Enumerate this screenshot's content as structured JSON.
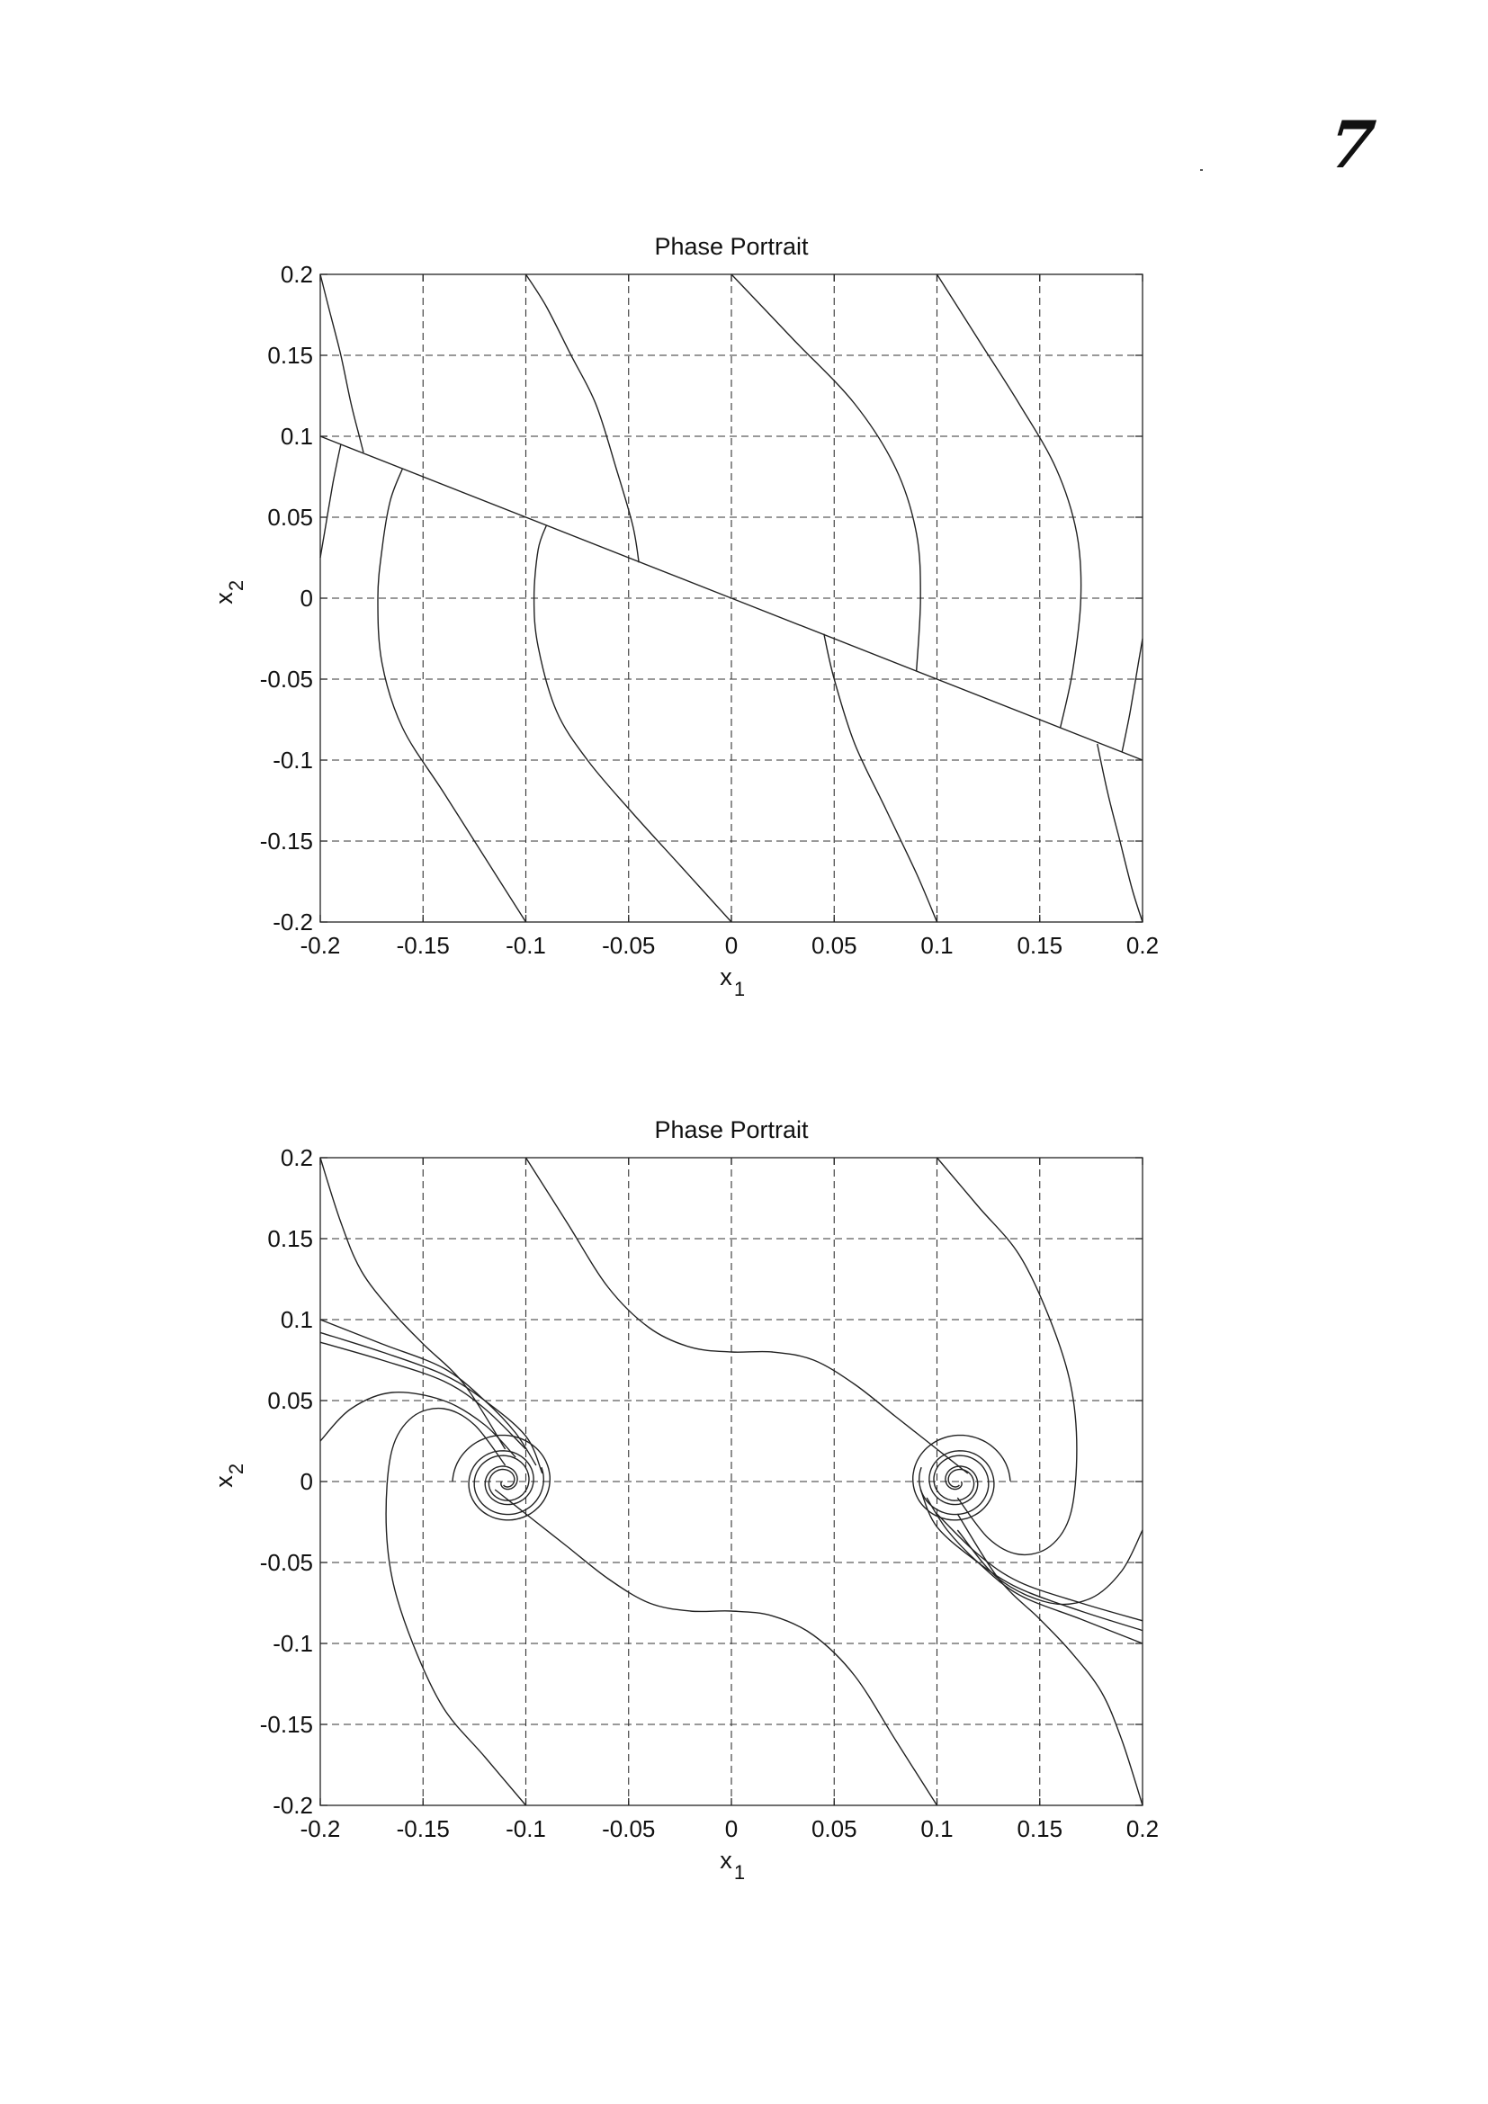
{
  "page": {
    "page_number": "7"
  },
  "chart_data": [
    {
      "type": "line",
      "title": "Phase Portrait",
      "xlabel_main": "x",
      "xlabel_sub": "1",
      "ylabel_main": "x",
      "ylabel_sub": "2",
      "xlim": [
        -0.2,
        0.2
      ],
      "ylim": [
        -0.2,
        0.2
      ],
      "xticks": [
        -0.2,
        -0.15,
        -0.1,
        -0.05,
        0,
        0.05,
        0.1,
        0.15,
        0.2
      ],
      "yticks": [
        -0.2,
        -0.15,
        -0.1,
        -0.05,
        0,
        0.05,
        0.1,
        0.15,
        0.2
      ],
      "xtick_labels": [
        "-0.2",
        "-0.15",
        "-0.1",
        "-0.05",
        "0",
        "0.05",
        "0.1",
        "0.15",
        "0.2"
      ],
      "ytick_labels": [
        "-0.2",
        "-0.15",
        "-0.1",
        "-0.05",
        "0",
        "0.05",
        "0.1",
        "0.15",
        "0.2"
      ],
      "grid": true,
      "series": [
        {
          "x": [
            -0.2,
            0.2
          ],
          "y": [
            0.1,
            -0.1
          ]
        },
        {
          "x": [
            -0.2,
            -0.196,
            -0.19,
            -0.185,
            -0.181,
            -0.179
          ],
          "y": [
            0.2,
            0.18,
            0.15,
            0.12,
            0.1,
            0.09
          ]
        },
        {
          "x": [
            -0.2,
            -0.198,
            -0.196,
            -0.194,
            -0.192,
            -0.19
          ],
          "y": [
            0.025,
            0.04,
            0.055,
            0.07,
            0.083,
            0.095
          ]
        },
        {
          "x": [
            -0.16,
            -0.166,
            -0.17,
            -0.172,
            -0.17,
            -0.16,
            -0.14,
            -0.12,
            -0.1
          ],
          "y": [
            0.08,
            0.06,
            0.03,
            0,
            -0.04,
            -0.08,
            -0.12,
            -0.16,
            -0.2
          ]
        },
        {
          "x": [
            -0.1,
            -0.09,
            -0.078,
            -0.066,
            -0.056,
            -0.048,
            -0.045
          ],
          "y": [
            0.2,
            0.18,
            0.15,
            0.12,
            0.08,
            0.045,
            0.022
          ]
        },
        {
          "x": [
            -0.09,
            -0.094,
            -0.096,
            -0.094,
            -0.085,
            -0.07,
            -0.05,
            -0.025,
            0
          ],
          "y": [
            0.045,
            0.03,
            0,
            -0.03,
            -0.07,
            -0.1,
            -0.13,
            -0.165,
            -0.2
          ]
        },
        {
          "x": [
            0,
            0.03,
            0.06,
            0.08,
            0.09,
            0.092,
            0.09
          ],
          "y": [
            0.2,
            0.16,
            0.12,
            0.08,
            0.04,
            0,
            -0.045
          ]
        },
        {
          "x": [
            0.045,
            0.05,
            0.06,
            0.075,
            0.09,
            0.1
          ],
          "y": [
            -0.022,
            -0.05,
            -0.09,
            -0.13,
            -0.17,
            -0.2
          ]
        },
        {
          "x": [
            0.1,
            0.12,
            0.14,
            0.158,
            0.168,
            0.17,
            0.166,
            0.16
          ],
          "y": [
            0.2,
            0.16,
            0.12,
            0.08,
            0.04,
            0,
            -0.045,
            -0.08
          ]
        },
        {
          "x": [
            0.178,
            0.183,
            0.189,
            0.195,
            0.2
          ],
          "y": [
            -0.09,
            -0.12,
            -0.15,
            -0.18,
            -0.2
          ]
        },
        {
          "x": [
            0.19,
            0.192,
            0.194,
            0.196,
            0.198,
            0.2
          ],
          "y": [
            -0.095,
            -0.083,
            -0.07,
            -0.055,
            -0.04,
            -0.025
          ]
        }
      ]
    },
    {
      "type": "line",
      "title": "Phase Portrait",
      "xlabel_main": "x",
      "xlabel_sub": "1",
      "ylabel_main": "x",
      "ylabel_sub": "2",
      "xlim": [
        -0.2,
        0.2
      ],
      "ylim": [
        -0.2,
        0.2
      ],
      "xticks": [
        -0.2,
        -0.15,
        -0.1,
        -0.05,
        0,
        0.05,
        0.1,
        0.15,
        0.2
      ],
      "yticks": [
        -0.2,
        -0.15,
        -0.1,
        -0.05,
        0,
        0.05,
        0.1,
        0.15,
        0.2
      ],
      "xtick_labels": [
        "-0.2",
        "-0.15",
        "-0.1",
        "-0.05",
        "0",
        "0.05",
        "0.1",
        "0.15",
        "0.2"
      ],
      "ytick_labels": [
        "-0.2",
        "-0.15",
        "-0.1",
        "-0.05",
        "0",
        "0.05",
        "0.1",
        "0.15",
        "0.2"
      ],
      "grid": true,
      "equilibria": [
        [
          -0.11,
          0
        ],
        [
          0.11,
          0
        ]
      ],
      "series": [
        {
          "x": [
            -0.1,
            -0.08,
            -0.06,
            -0.04,
            -0.02,
            0,
            0.02,
            0.04,
            0.06,
            0.08,
            0.1,
            0.115
          ],
          "y": [
            0.2,
            0.16,
            0.12,
            0.095,
            0.083,
            0.08,
            0.08,
            0.075,
            0.06,
            0.04,
            0.02,
            0.005
          ]
        },
        {
          "x": [
            0.1,
            0.08,
            0.06,
            0.04,
            0.02,
            0,
            -0.02,
            -0.04,
            -0.06,
            -0.08,
            -0.1,
            -0.115
          ],
          "y": [
            -0.2,
            -0.16,
            -0.12,
            -0.095,
            -0.083,
            -0.08,
            -0.08,
            -0.075,
            -0.06,
            -0.04,
            -0.02,
            -0.005
          ]
        },
        {
          "x": [
            -0.2,
            -0.19,
            -0.18,
            -0.165,
            -0.15,
            -0.13,
            -0.11
          ],
          "y": [
            0.2,
            0.16,
            0.13,
            0.105,
            0.085,
            0.06,
            0.02
          ]
        },
        {
          "x": [
            0.2,
            0.19,
            0.18,
            0.165,
            0.15,
            0.13,
            0.11
          ],
          "y": [
            -0.2,
            -0.16,
            -0.13,
            -0.105,
            -0.085,
            -0.06,
            -0.02
          ]
        },
        {
          "x": [
            0.1,
            0.12,
            0.14,
            0.155,
            0.165,
            0.168,
            0.165,
            0.155,
            0.14,
            0.125,
            0.11
          ],
          "y": [
            0.2,
            0.17,
            0.14,
            0.1,
            0.06,
            0.02,
            -0.02,
            -0.04,
            -0.045,
            -0.035,
            -0.01
          ]
        },
        {
          "x": [
            -0.1,
            -0.12,
            -0.14,
            -0.155,
            -0.165,
            -0.168,
            -0.165,
            -0.155,
            -0.14,
            -0.125,
            -0.11
          ],
          "y": [
            -0.2,
            -0.17,
            -0.14,
            -0.1,
            -0.06,
            -0.02,
            0.02,
            0.04,
            0.045,
            0.035,
            0.01
          ]
        },
        {
          "x": [
            -0.2,
            -0.17,
            -0.14,
            -0.12,
            -0.105,
            -0.095
          ],
          "y": [
            0.1,
            0.085,
            0.07,
            0.05,
            0.03,
            0.01
          ]
        },
        {
          "x": [
            -0.2,
            -0.17,
            -0.14,
            -0.12,
            -0.1,
            -0.092
          ],
          "y": [
            0.092,
            0.08,
            0.066,
            0.05,
            0.028,
            0.005
          ]
        },
        {
          "x": [
            -0.2,
            -0.17,
            -0.14,
            -0.12,
            -0.1
          ],
          "y": [
            0.086,
            0.075,
            0.062,
            0.045,
            0.02
          ]
        },
        {
          "x": [
            -0.2,
            -0.185,
            -0.165,
            -0.14,
            -0.12,
            -0.105
          ],
          "y": [
            0.025,
            0.045,
            0.055,
            0.05,
            0.035,
            0.015
          ]
        },
        {
          "x": [
            0.2,
            0.17,
            0.14,
            0.12,
            0.105,
            0.095
          ],
          "y": [
            -0.1,
            -0.085,
            -0.07,
            -0.05,
            -0.03,
            -0.01
          ]
        },
        {
          "x": [
            0.2,
            0.17,
            0.14,
            0.12,
            0.1,
            0.092
          ],
          "y": [
            -0.092,
            -0.08,
            -0.066,
            -0.05,
            -0.028,
            -0.005
          ]
        },
        {
          "x": [
            0.2,
            0.17,
            0.14,
            0.12,
            0.1
          ],
          "y": [
            -0.086,
            -0.075,
            -0.062,
            -0.045,
            -0.02
          ]
        },
        {
          "x": [
            0.2,
            0.19,
            0.175,
            0.155,
            0.13,
            0.11
          ],
          "y": [
            -0.03,
            -0.055,
            -0.072,
            -0.075,
            -0.06,
            -0.03
          ]
        }
      ]
    }
  ]
}
